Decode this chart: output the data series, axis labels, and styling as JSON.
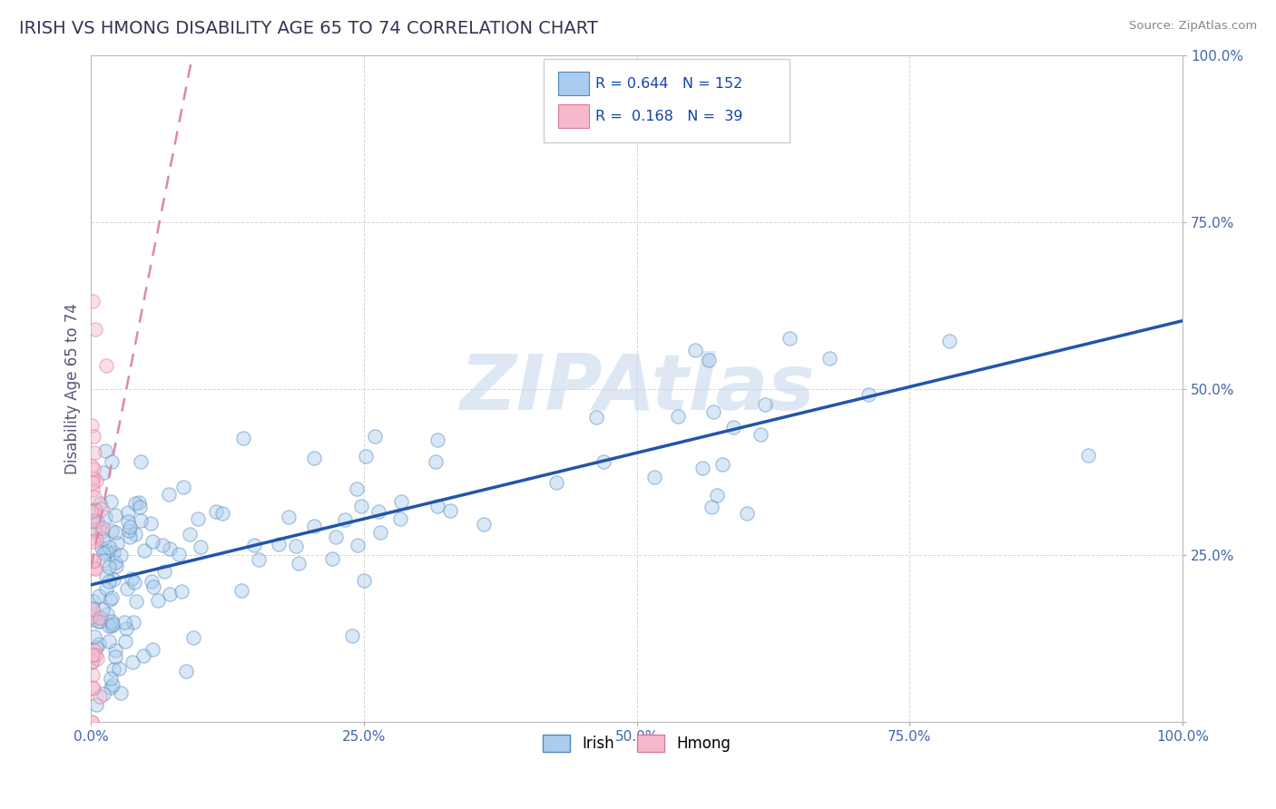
{
  "title": "IRISH VS HMONG DISABILITY AGE 65 TO 74 CORRELATION CHART",
  "source_text": "Source: ZipAtlas.com",
  "ylabel": "Disability Age 65 to 74",
  "xlim": [
    0.0,
    1.0
  ],
  "ylim": [
    0.0,
    1.0
  ],
  "xticks": [
    0.0,
    0.25,
    0.5,
    0.75,
    1.0
  ],
  "yticks": [
    0.0,
    0.25,
    0.5,
    0.75,
    1.0
  ],
  "irish_color": "#aaccee",
  "irish_edge_color": "#5588bb",
  "hmong_color": "#f8b8cc",
  "hmong_edge_color": "#dd7799",
  "irish_R": 0.644,
  "irish_N": 152,
  "hmong_R": 0.168,
  "hmong_N": 39,
  "irish_line_color": "#2255aa",
  "hmong_line_color": "#dd88aa",
  "watermark_text": "ZIPAtlas",
  "title_color": "#333355",
  "axis_label_color": "#555577",
  "tick_color": "#4466aa",
  "grid_color": "#cccccc",
  "title_fontsize": 14,
  "watermark_color": "#c8d8ee",
  "scatter_size": 120,
  "scatter_alpha": 0.45,
  "scatter_lw": 1.0
}
